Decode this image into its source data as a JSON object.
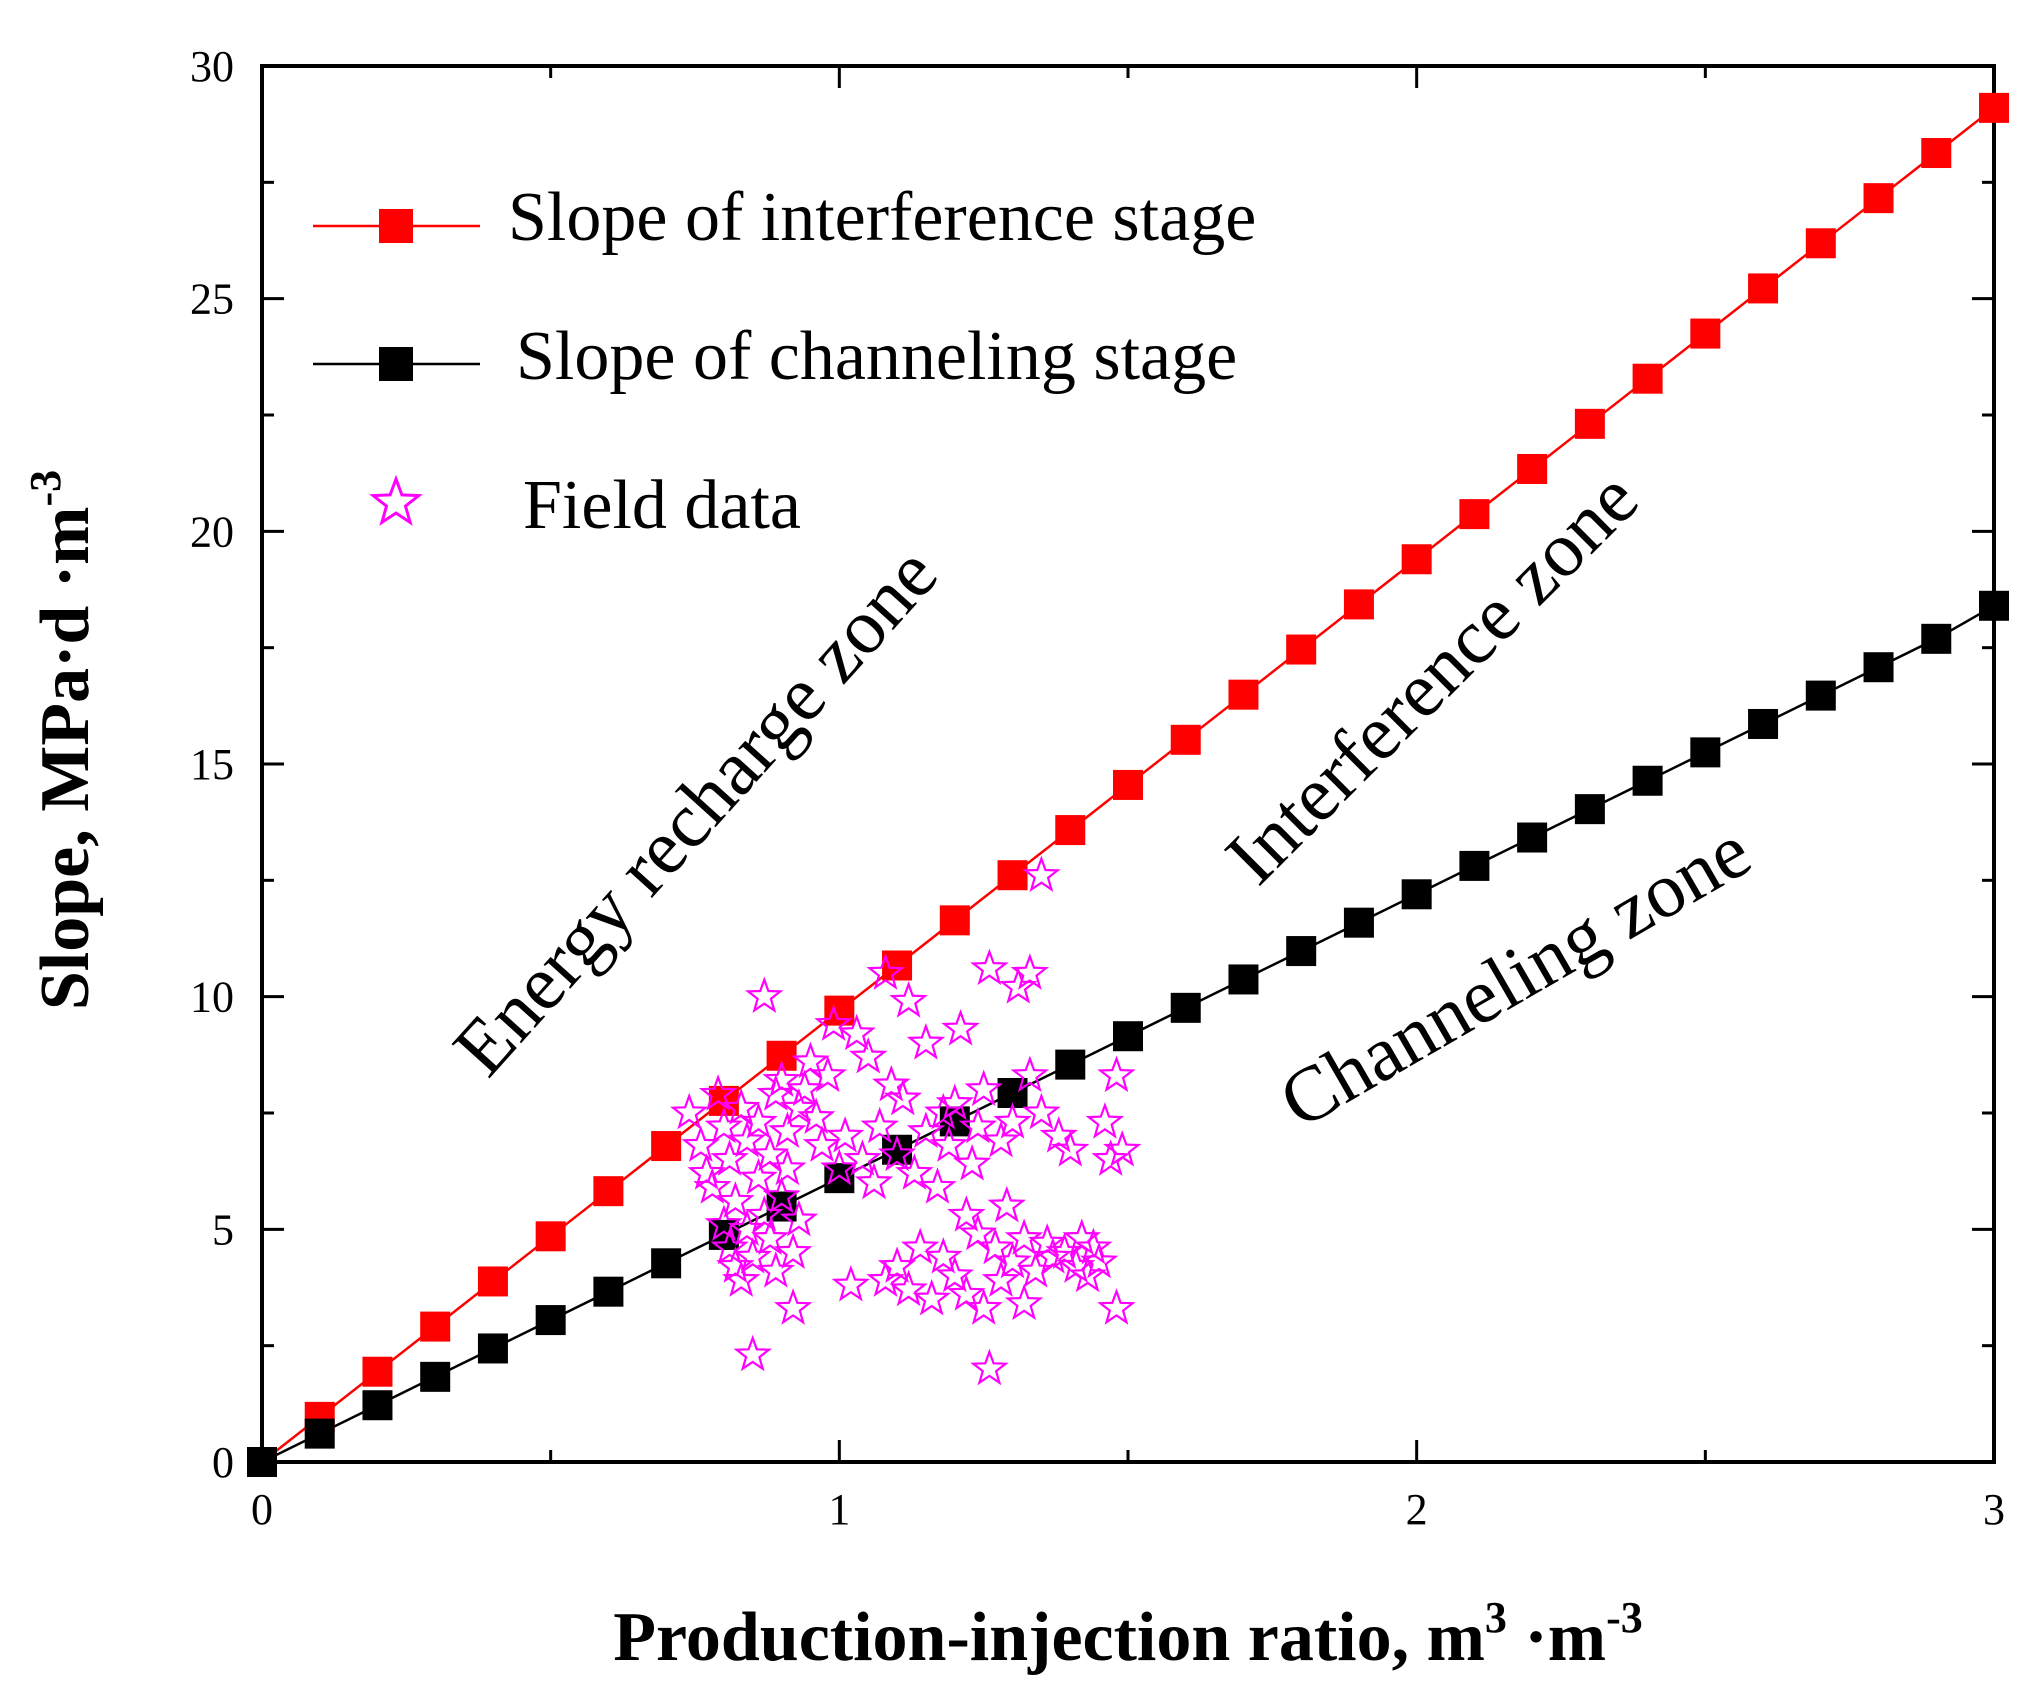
{
  "chart_data": {
    "type": "scatter",
    "title": "",
    "xlabel": "Production-injection ratio, m",
    "xlabel_sup1": "3",
    "xlabel_mid": " ·m",
    "xlabel_sup2": "-3",
    "ylabel": "Slope, MPa·d ·m",
    "ylabel_sup": "-3",
    "xlim": [
      0,
      3
    ],
    "ylim": [
      0,
      30
    ],
    "x_ticks": [
      0,
      1,
      2,
      3
    ],
    "x_tick_labels": [
      "0",
      "1",
      "2",
      "3"
    ],
    "y_ticks": [
      0,
      5,
      10,
      15,
      20,
      25,
      30
    ],
    "y_tick_labels": [
      "0",
      "5",
      "10",
      "15",
      "20",
      "25",
      "30"
    ],
    "series": [
      {
        "name": "Slope of interference stage",
        "color": "#ff0000",
        "marker": "square",
        "x": [
          0,
          0.1,
          0.2,
          0.3,
          0.4,
          0.5,
          0.6,
          0.7,
          0.8,
          0.9,
          1.0,
          1.1,
          1.2,
          1.3,
          1.4,
          1.5,
          1.6,
          1.7,
          1.8,
          1.9,
          2.0,
          2.1,
          2.2,
          2.3,
          2.4,
          2.5,
          2.6,
          2.7,
          2.8,
          2.9,
          3.0
        ],
        "y": [
          0,
          0.97,
          1.94,
          2.91,
          3.88,
          4.85,
          5.82,
          6.79,
          7.76,
          8.73,
          9.7,
          10.67,
          11.64,
          12.61,
          13.58,
          14.55,
          15.52,
          16.49,
          17.46,
          18.43,
          19.4,
          20.37,
          21.34,
          22.31,
          23.28,
          24.25,
          25.22,
          26.19,
          27.16,
          28.13,
          29.1
        ]
      },
      {
        "name": "Slope of channeling stage",
        "color": "#000000",
        "marker": "square",
        "x": [
          0,
          0.1,
          0.2,
          0.3,
          0.4,
          0.5,
          0.6,
          0.7,
          0.8,
          0.9,
          1.0,
          1.1,
          1.2,
          1.3,
          1.4,
          1.5,
          1.6,
          1.7,
          1.8,
          1.9,
          2.0,
          2.1,
          2.2,
          2.3,
          2.4,
          2.5,
          2.6,
          2.7,
          2.8,
          2.9,
          3.0
        ],
        "y": [
          0,
          0.61,
          1.22,
          1.83,
          2.44,
          3.05,
          3.66,
          4.27,
          4.88,
          5.49,
          6.1,
          6.71,
          7.32,
          7.93,
          8.54,
          9.15,
          9.76,
          10.37,
          10.98,
          11.59,
          12.2,
          12.81,
          13.42,
          14.03,
          14.64,
          15.25,
          15.86,
          16.47,
          17.08,
          17.69,
          18.4
        ]
      },
      {
        "name": "Field data",
        "color": "#ff00ff",
        "marker": "star",
        "points": [
          [
            0.74,
            7.5
          ],
          [
            0.76,
            6.8
          ],
          [
            0.77,
            6.2
          ],
          [
            0.78,
            5.9
          ],
          [
            0.79,
            7.9
          ],
          [
            0.8,
            7.2
          ],
          [
            0.8,
            5.1
          ],
          [
            0.81,
            4.6
          ],
          [
            0.81,
            6.5
          ],
          [
            0.82,
            4.2
          ],
          [
            0.82,
            5.6
          ],
          [
            0.83,
            7.6
          ],
          [
            0.83,
            3.9
          ],
          [
            0.84,
            6.9
          ],
          [
            0.84,
            5.0
          ],
          [
            0.85,
            4.4
          ],
          [
            0.85,
            2.3
          ],
          [
            0.86,
            6.1
          ],
          [
            0.86,
            7.3
          ],
          [
            0.87,
            5.3
          ],
          [
            0.87,
            10.0
          ],
          [
            0.88,
            4.8
          ],
          [
            0.88,
            6.6
          ],
          [
            0.89,
            7.9
          ],
          [
            0.89,
            4.1
          ],
          [
            0.9,
            8.2
          ],
          [
            0.9,
            5.7
          ],
          [
            0.91,
            6.3
          ],
          [
            0.91,
            7.1
          ],
          [
            0.92,
            3.3
          ],
          [
            0.92,
            4.5
          ],
          [
            0.93,
            7.6
          ],
          [
            0.93,
            5.2
          ],
          [
            0.94,
            8.0
          ],
          [
            0.95,
            8.6
          ],
          [
            0.96,
            7.4
          ],
          [
            0.97,
            6.8
          ],
          [
            0.98,
            8.3
          ],
          [
            0.99,
            9.4
          ],
          [
            1.0,
            6.3
          ],
          [
            1.01,
            7.0
          ],
          [
            1.02,
            3.8
          ],
          [
            1.03,
            9.2
          ],
          [
            1.04,
            6.5
          ],
          [
            1.05,
            8.7
          ],
          [
            1.06,
            6.0
          ],
          [
            1.07,
            7.2
          ],
          [
            1.08,
            10.5
          ],
          [
            1.08,
            3.9
          ],
          [
            1.09,
            8.1
          ],
          [
            1.1,
            6.6
          ],
          [
            1.1,
            4.2
          ],
          [
            1.11,
            7.8
          ],
          [
            1.12,
            3.7
          ],
          [
            1.12,
            9.9
          ],
          [
            1.13,
            6.2
          ],
          [
            1.14,
            4.6
          ],
          [
            1.15,
            9.0
          ],
          [
            1.15,
            7.1
          ],
          [
            1.16,
            3.5
          ],
          [
            1.17,
            5.9
          ],
          [
            1.18,
            4.4
          ],
          [
            1.18,
            7.5
          ],
          [
            1.19,
            6.8
          ],
          [
            1.2,
            4.0
          ],
          [
            1.2,
            7.7
          ],
          [
            1.21,
            9.3
          ],
          [
            1.22,
            3.6
          ],
          [
            1.22,
            5.3
          ],
          [
            1.23,
            6.4
          ],
          [
            1.24,
            4.9
          ],
          [
            1.24,
            7.2
          ],
          [
            1.25,
            3.3
          ],
          [
            1.25,
            8.0
          ],
          [
            1.26,
            10.6
          ],
          [
            1.26,
            2.0
          ],
          [
            1.27,
            4.6
          ],
          [
            1.28,
            6.9
          ],
          [
            1.28,
            3.9
          ],
          [
            1.29,
            5.5
          ],
          [
            1.3,
            4.3
          ],
          [
            1.3,
            7.3
          ],
          [
            1.31,
            10.2
          ],
          [
            1.32,
            3.4
          ],
          [
            1.32,
            4.8
          ],
          [
            1.33,
            10.5
          ],
          [
            1.33,
            8.3
          ],
          [
            1.34,
            4.1
          ],
          [
            1.35,
            12.6
          ],
          [
            1.35,
            7.5
          ],
          [
            1.36,
            4.7
          ],
          [
            1.37,
            4.4
          ],
          [
            1.38,
            7.0
          ],
          [
            1.39,
            4.5
          ],
          [
            1.4,
            6.7
          ],
          [
            1.41,
            4.2
          ],
          [
            1.42,
            4.8
          ],
          [
            1.43,
            4.0
          ],
          [
            1.44,
            4.6
          ],
          [
            1.45,
            4.3
          ],
          [
            1.46,
            7.3
          ],
          [
            1.47,
            6.5
          ],
          [
            1.48,
            3.3
          ],
          [
            1.48,
            8.3
          ],
          [
            1.49,
            6.7
          ]
        ]
      }
    ],
    "legend": {
      "placement": "top-left",
      "entries": [
        "Slope of interference stage",
        "Slope of channeling stage",
        "Field data"
      ]
    },
    "annotations": {
      "energy": "Energy recharge zone",
      "interference": "Interference zone",
      "channeling": "Channeling zone"
    }
  }
}
